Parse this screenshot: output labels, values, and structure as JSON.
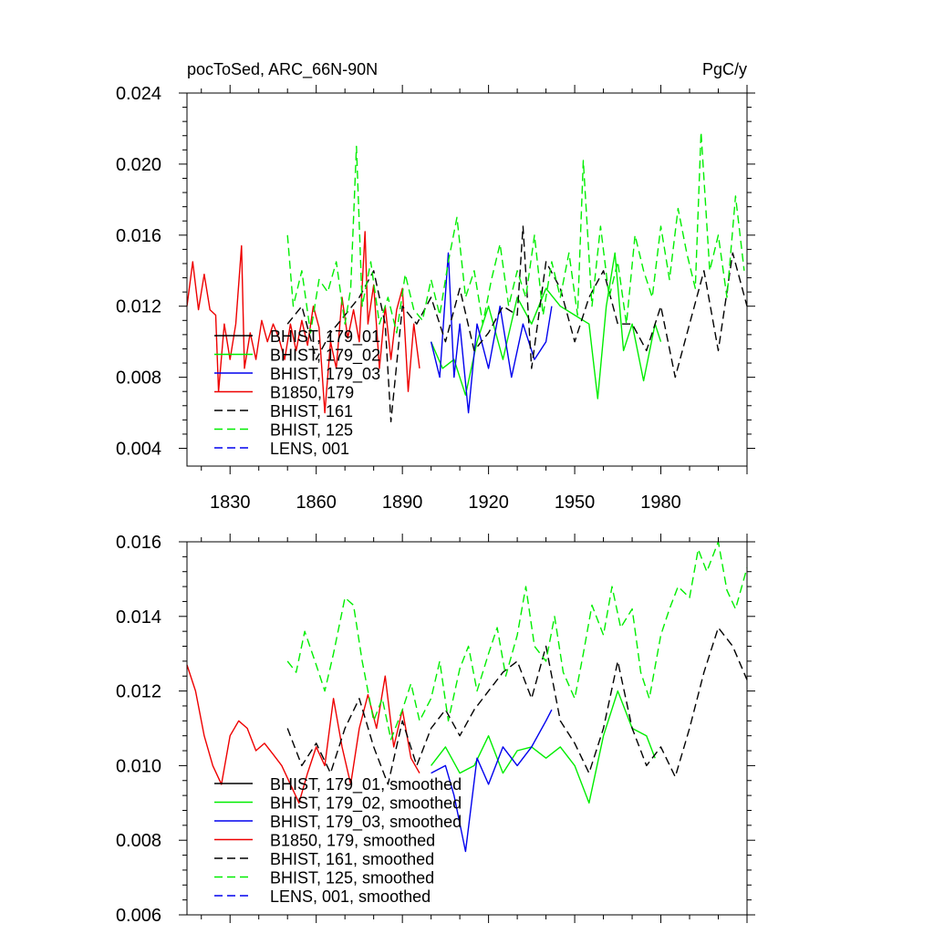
{
  "chart_data": [
    {
      "type": "line",
      "title": "pocToSed, ARC_66N-90N",
      "units": "PgC/y",
      "xlim": [
        1815,
        2010
      ],
      "ylim": [
        0.003,
        0.024
      ],
      "yticks": [
        0.004,
        0.008,
        0.012,
        0.016,
        0.02,
        0.024
      ],
      "ytick_labels": [
        "0.004",
        "0.008",
        "0.012",
        "0.016",
        "0.020",
        "0.024"
      ],
      "xticks": [
        1830,
        1860,
        1890,
        1920,
        1950,
        1980
      ],
      "xtick_labels": [
        "1830",
        "1860",
        "1890",
        "1920",
        "1950",
        "1980"
      ],
      "legend_position": "lower-left",
      "series": [
        {
          "name": "BHIST, 179_01",
          "color": "#000000",
          "dash": "solid",
          "x": [],
          "y": []
        },
        {
          "name": "BHIST, 179_02",
          "color": "#00ee00",
          "dash": "solid",
          "x": [
            1900,
            1904,
            1908,
            1912,
            1916,
            1920,
            1925,
            1930,
            1935,
            1940,
            1945,
            1950,
            1955,
            1958,
            1961,
            1964,
            1967,
            1970,
            1974,
            1978,
            1980
          ],
          "y": [
            0.01,
            0.0085,
            0.009,
            0.007,
            0.01,
            0.012,
            0.009,
            0.0125,
            0.011,
            0.013,
            0.012,
            0.0115,
            0.011,
            0.0068,
            0.012,
            0.015,
            0.0095,
            0.011,
            0.0078,
            0.011,
            0.01
          ]
        },
        {
          "name": "BHIST, 179_03",
          "color": "#0000ee",
          "dash": "solid",
          "x": [
            1900,
            1903,
            1906,
            1908,
            1910,
            1913,
            1916,
            1920,
            1924,
            1928,
            1932,
            1936,
            1940,
            1942
          ],
          "y": [
            0.01,
            0.008,
            0.015,
            0.008,
            0.011,
            0.006,
            0.011,
            0.0085,
            0.012,
            0.008,
            0.011,
            0.009,
            0.01,
            0.012
          ]
        },
        {
          "name": "B1850, 179",
          "color": "#ee0000",
          "dash": "solid",
          "x": [
            1815,
            1817,
            1819,
            1821,
            1823,
            1825,
            1826,
            1828,
            1830,
            1832,
            1834,
            1835,
            1837,
            1839,
            1841,
            1843,
            1845,
            1847,
            1849,
            1851,
            1853,
            1855,
            1857,
            1859,
            1861,
            1863,
            1865,
            1867,
            1869,
            1871,
            1873,
            1875,
            1877,
            1878,
            1880,
            1882,
            1884,
            1886,
            1888,
            1890,
            1892,
            1894,
            1896
          ],
          "y": [
            0.012,
            0.0145,
            0.0118,
            0.0138,
            0.0118,
            0.0115,
            0.0072,
            0.011,
            0.009,
            0.011,
            0.0154,
            0.0085,
            0.0105,
            0.009,
            0.0112,
            0.01,
            0.011,
            0.0102,
            0.009,
            0.011,
            0.0095,
            0.0112,
            0.0098,
            0.012,
            0.0108,
            0.006,
            0.01,
            0.0085,
            0.0125,
            0.0102,
            0.0118,
            0.01,
            0.0162,
            0.011,
            0.0132,
            0.0085,
            0.012,
            0.009,
            0.0118,
            0.013,
            0.0072,
            0.011,
            0.0085
          ]
        },
        {
          "name": "BHIST, 161",
          "color": "#000000",
          "dash": "dashed",
          "x": [
            1850,
            1855,
            1860,
            1865,
            1870,
            1875,
            1880,
            1884,
            1886,
            1890,
            1895,
            1900,
            1905,
            1910,
            1915,
            1920,
            1925,
            1930,
            1932,
            1935,
            1940,
            1945,
            1950,
            1955,
            1960,
            1965,
            1970,
            1975,
            1980,
            1985,
            1990,
            1995,
            2000,
            2005,
            2010
          ],
          "y": [
            0.011,
            0.012,
            0.009,
            0.0105,
            0.0115,
            0.0125,
            0.014,
            0.011,
            0.0055,
            0.012,
            0.011,
            0.0125,
            0.01,
            0.013,
            0.0095,
            0.0105,
            0.012,
            0.0115,
            0.0165,
            0.0085,
            0.0145,
            0.013,
            0.01,
            0.0125,
            0.014,
            0.011,
            0.011,
            0.0095,
            0.012,
            0.008,
            0.011,
            0.014,
            0.0095,
            0.015,
            0.012
          ]
        },
        {
          "name": "BHIST, 125",
          "color": "#00ee00",
          "dash": "dashed",
          "x": [
            1850,
            1852,
            1855,
            1858,
            1861,
            1864,
            1867,
            1870,
            1872,
            1874,
            1876,
            1879,
            1882,
            1885,
            1888,
            1891,
            1894,
            1897,
            1900,
            1903,
            1906,
            1909,
            1912,
            1915,
            1918,
            1921,
            1924,
            1927,
            1930,
            1933,
            1936,
            1939,
            1942,
            1945,
            1948,
            1951,
            1953,
            1956,
            1959,
            1962,
            1965,
            1968,
            1971,
            1974,
            1977,
            1980,
            1983,
            1986,
            1989,
            1992,
            1994,
            1997,
            2000,
            2003,
            2006,
            2009
          ],
          "y": [
            0.016,
            0.012,
            0.014,
            0.0105,
            0.0135,
            0.0128,
            0.0145,
            0.011,
            0.013,
            0.021,
            0.012,
            0.0145,
            0.011,
            0.0125,
            0.0105,
            0.0138,
            0.0118,
            0.0112,
            0.0135,
            0.0115,
            0.0145,
            0.017,
            0.0125,
            0.014,
            0.011,
            0.0135,
            0.0155,
            0.012,
            0.014,
            0.0125,
            0.016,
            0.0115,
            0.0145,
            0.0125,
            0.015,
            0.0115,
            0.0202,
            0.012,
            0.0165,
            0.0125,
            0.0145,
            0.011,
            0.016,
            0.014,
            0.0125,
            0.0165,
            0.0135,
            0.0175,
            0.015,
            0.013,
            0.0218,
            0.014,
            0.016,
            0.0125,
            0.0182,
            0.014
          ]
        },
        {
          "name": "LENS, 001",
          "color": "#0000ee",
          "dash": "dashed",
          "x": [],
          "y": []
        }
      ]
    },
    {
      "type": "line",
      "xlim": [
        1815,
        2010
      ],
      "ylim": [
        0.006,
        0.016
      ],
      "yticks": [
        0.006,
        0.008,
        0.01,
        0.012,
        0.014,
        0.016
      ],
      "ytick_labels": [
        "0.006",
        "0.008",
        "0.010",
        "0.012",
        "0.014",
        "0.016"
      ],
      "legend_position": "lower-left",
      "series": [
        {
          "name": "BHIST, 179_01, smoothed",
          "color": "#000000",
          "dash": "solid",
          "x": [],
          "y": []
        },
        {
          "name": "BHIST, 179_02, smoothed",
          "color": "#00ee00",
          "dash": "solid",
          "x": [
            1900,
            1905,
            1910,
            1915,
            1920,
            1925,
            1930,
            1935,
            1940,
            1945,
            1950,
            1955,
            1960,
            1965,
            1970,
            1975,
            1978
          ],
          "y": [
            0.01,
            0.0105,
            0.0098,
            0.01,
            0.0108,
            0.0098,
            0.0104,
            0.0105,
            0.0102,
            0.0105,
            0.01,
            0.009,
            0.0108,
            0.012,
            0.011,
            0.0108,
            0.0102
          ]
        },
        {
          "name": "BHIST, 179_03, smoothed",
          "color": "#0000ee",
          "dash": "solid",
          "x": [
            1900,
            1905,
            1908,
            1912,
            1916,
            1920,
            1925,
            1930,
            1935,
            1940,
            1942
          ],
          "y": [
            0.0098,
            0.01,
            0.0092,
            0.0077,
            0.0102,
            0.0095,
            0.0105,
            0.01,
            0.0105,
            0.0112,
            0.0115
          ]
        },
        {
          "name": "B1850, 179, smoothed",
          "color": "#ee0000",
          "dash": "solid",
          "x": [
            1815,
            1818,
            1821,
            1824,
            1827,
            1830,
            1833,
            1836,
            1839,
            1842,
            1845,
            1848,
            1851,
            1854,
            1857,
            1860,
            1863,
            1866,
            1869,
            1872,
            1875,
            1878,
            1881,
            1884,
            1887,
            1890,
            1893,
            1896
          ],
          "y": [
            0.0127,
            0.012,
            0.0108,
            0.01,
            0.0095,
            0.0108,
            0.0112,
            0.011,
            0.0104,
            0.0106,
            0.0103,
            0.01,
            0.0095,
            0.009,
            0.0098,
            0.0105,
            0.01,
            0.0118,
            0.0105,
            0.0095,
            0.011,
            0.0119,
            0.011,
            0.0124,
            0.0105,
            0.0115,
            0.0102,
            0.0098
          ]
        },
        {
          "name": "BHIST, 161, smoothed",
          "color": "#000000",
          "dash": "dashed",
          "x": [
            1850,
            1855,
            1860,
            1865,
            1870,
            1875,
            1880,
            1885,
            1890,
            1895,
            1900,
            1905,
            1910,
            1915,
            1920,
            1925,
            1930,
            1935,
            1940,
            1945,
            1950,
            1955,
            1960,
            1965,
            1970,
            1975,
            1980,
            1985,
            1990,
            1995,
            2000,
            2005,
            2010
          ],
          "y": [
            0.011,
            0.01,
            0.0106,
            0.0098,
            0.011,
            0.0118,
            0.0105,
            0.0095,
            0.0112,
            0.01,
            0.011,
            0.0115,
            0.0108,
            0.0115,
            0.012,
            0.0125,
            0.0128,
            0.0118,
            0.0132,
            0.0112,
            0.0106,
            0.0098,
            0.011,
            0.0128,
            0.011,
            0.01,
            0.0105,
            0.0097,
            0.011,
            0.0125,
            0.0137,
            0.0132,
            0.0123
          ]
        },
        {
          "name": "BHIST, 125, smoothed",
          "color": "#00ee00",
          "dash": "dashed",
          "x": [
            1850,
            1853,
            1856,
            1860,
            1863,
            1866,
            1870,
            1873,
            1876,
            1880,
            1883,
            1886,
            1890,
            1893,
            1896,
            1900,
            1903,
            1906,
            1910,
            1913,
            1916,
            1920,
            1923,
            1926,
            1930,
            1933,
            1936,
            1940,
            1943,
            1946,
            1950,
            1953,
            1956,
            1960,
            1963,
            1966,
            1970,
            1973,
            1976,
            1980,
            1983,
            1986,
            1990,
            1993,
            1996,
            2000,
            2003,
            2006,
            2010
          ],
          "y": [
            0.0128,
            0.0125,
            0.0136,
            0.0127,
            0.012,
            0.013,
            0.0145,
            0.0143,
            0.0128,
            0.0112,
            0.0118,
            0.0107,
            0.0115,
            0.0122,
            0.0112,
            0.0118,
            0.0128,
            0.0112,
            0.0126,
            0.0132,
            0.012,
            0.013,
            0.0137,
            0.0124,
            0.0135,
            0.0148,
            0.0132,
            0.0128,
            0.014,
            0.0125,
            0.0118,
            0.013,
            0.0143,
            0.0135,
            0.0148,
            0.0137,
            0.0142,
            0.0125,
            0.0118,
            0.0135,
            0.0142,
            0.0148,
            0.0145,
            0.0158,
            0.0152,
            0.016,
            0.0147,
            0.0142,
            0.0153
          ]
        },
        {
          "name": "LENS, 001, smoothed",
          "color": "#0000ee",
          "dash": "dashed",
          "x": [],
          "y": []
        }
      ]
    }
  ]
}
